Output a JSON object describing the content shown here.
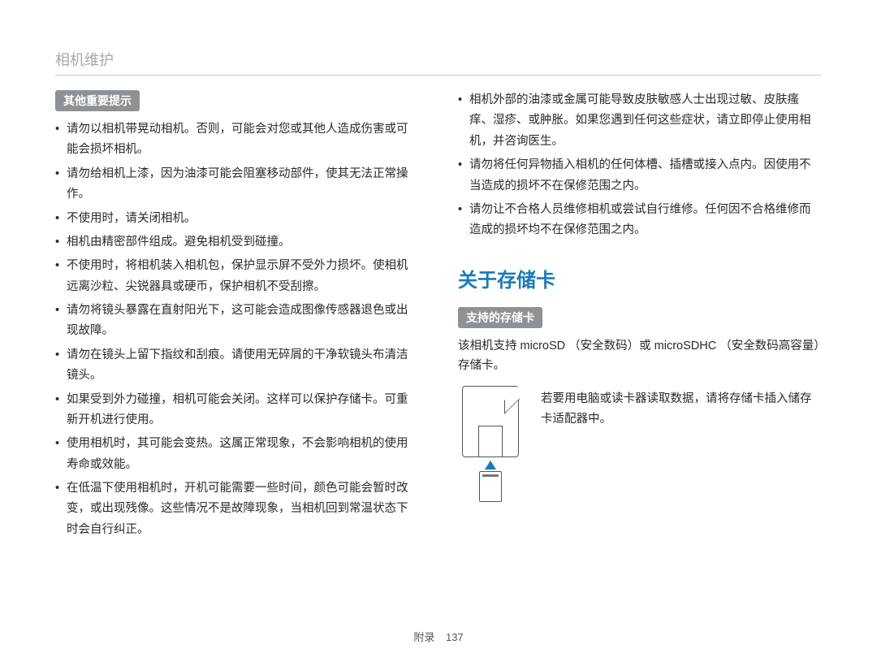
{
  "header": "相机维护",
  "left": {
    "label": "其他重要提示",
    "bullets": [
      "请勿以相机带晃动相机。否则，可能会对您或其他人造成伤害或可能会损坏相机。",
      "请勿给相机上漆，因为油漆可能会阻塞移动部件，使其无法正常操作。",
      "不使用时，请关闭相机。",
      "相机由精密部件组成。避免相机受到碰撞。",
      "不使用时，将相机装入相机包，保护显示屏不受外力损坏。使相机远离沙粒、尖锐器具或硬币，保护相机不受刮擦。",
      "请勿将镜头暴露在直射阳光下，这可能会造成图像传感器退色或出现故障。",
      "请勿在镜头上留下指纹和刮痕。请使用无碎屑的干净软镜头布清洁镜头。",
      "如果受到外力碰撞，相机可能会关闭。这样可以保护存储卡。可重新开机进行使用。",
      "使用相机时，其可能会变热。这属正常现象，不会影响相机的使用寿命或效能。",
      "在低温下使用相机时，开机可能需要一些时间，颜色可能会暂时改变，或出现残像。这些情况不是故障现象，当相机回到常温状态下时会自行纠正。"
    ]
  },
  "right": {
    "top_bullets": [
      "相机外部的油漆或金属可能导致皮肤敏感人士出现过敏、皮肤瘙痒、湿疹、或肿胀。如果您遇到任何这些症状，请立即停止使用相机，并咨询医生。",
      "请勿将任何异物插入相机的任何体槽、插槽或接入点内。因使用不当造成的损坏不在保修范围之内。",
      "请勿让不合格人员维修相机或尝试自行维修。任何因不合格维修而造成的损坏均不在保修范围之内。"
    ],
    "heading": "关于存储卡",
    "sub_label": "支持的存储卡",
    "support_text": "该相机支持 microSD （安全数码）或 microSDHC （安全数码高容量）存储卡。",
    "sd_note": "若要用电脑或读卡器读取数据，请将存储卡插入储存卡适配器中。"
  },
  "footer": {
    "section": "附录",
    "page": "137"
  },
  "colors": {
    "heading_blue": "#1a7ab8",
    "label_bg": "#8e9294",
    "header_gray": "#a8a8a8",
    "rule": "#cccccc",
    "body_text": "#2a2a2a"
  }
}
